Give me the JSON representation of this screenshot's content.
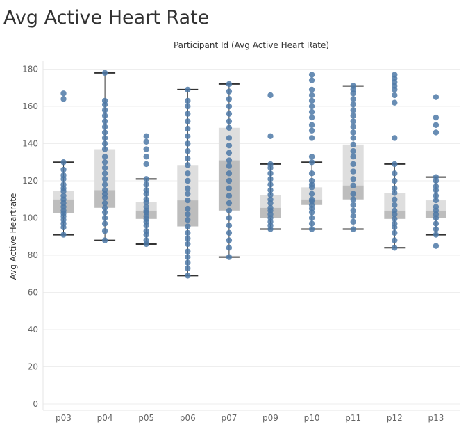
{
  "page": {
    "title": "Avg Active Heart Rate"
  },
  "chart_data": {
    "type": "box",
    "header": "Participant Id (Avg Active Heart Rate)",
    "ylabel": "Avg Active Heartrate",
    "ylim": [
      0,
      185
    ],
    "yticks": [
      0,
      20,
      40,
      60,
      80,
      100,
      120,
      140,
      160,
      180
    ],
    "categories": [
      "p03",
      "p04",
      "p05",
      "p06",
      "p07",
      "p09",
      "p10",
      "p11",
      "p12",
      "p13"
    ],
    "series": [
      {
        "category": "p03",
        "min": 91,
        "q1": 102.5,
        "median": 110,
        "q3": 114.5,
        "max": 130,
        "points": [
          91,
          95,
          97,
          99,
          101,
          102.5,
          104,
          106,
          108,
          110,
          112,
          114.5,
          116,
          118,
          121,
          123,
          126,
          130,
          164,
          167
        ]
      },
      {
        "category": "p04",
        "min": 88,
        "q1": 105.5,
        "median": 115,
        "q3": 137,
        "max": 178,
        "points": [
          88,
          93,
          97,
          100,
          103,
          105.5,
          108,
          111,
          113,
          115,
          118,
          121,
          124,
          127,
          130,
          133,
          137,
          140,
          143,
          146,
          149,
          152,
          155,
          158,
          161,
          163,
          178
        ]
      },
      {
        "category": "p05",
        "min": 86,
        "q1": 99.5,
        "median": 104,
        "q3": 108.5,
        "max": 121,
        "points": [
          86,
          88,
          91,
          93,
          96,
          98,
          99.5,
          101,
          103,
          104,
          106,
          108.5,
          110,
          113,
          115,
          118,
          121,
          129,
          133,
          137,
          141,
          144
        ]
      },
      {
        "category": "p06",
        "min": 69,
        "q1": 95.5,
        "median": 109.5,
        "q3": 128.5,
        "max": 169,
        "points": [
          69,
          73,
          76,
          79,
          82,
          86,
          89,
          92,
          95.5,
          99,
          102,
          105,
          109.5,
          113,
          116,
          120,
          124,
          128.5,
          132,
          136,
          140,
          144,
          148,
          152,
          156,
          160,
          163,
          169
        ]
      },
      {
        "category": "p07",
        "min": 79,
        "q1": 104,
        "median": 131,
        "q3": 148.5,
        "max": 172,
        "points": [
          79,
          84,
          88,
          92,
          96,
          100,
          104,
          108,
          112,
          116,
          120,
          124,
          128,
          131,
          135,
          139,
          143,
          148.5,
          152,
          156,
          160,
          164,
          168,
          172
        ]
      },
      {
        "category": "p09",
        "min": 94,
        "q1": 100,
        "median": 105.5,
        "q3": 112.5,
        "max": 129,
        "points": [
          94,
          96,
          98,
          100,
          102,
          104,
          105.5,
          108,
          110,
          112.5,
          115,
          118,
          121,
          124,
          127,
          129,
          144,
          166
        ]
      },
      {
        "category": "p10",
        "min": 94,
        "q1": 107,
        "median": 110,
        "q3": 116.5,
        "max": 130,
        "points": [
          94,
          97,
          100,
          103,
          105,
          107,
          109,
          110,
          113,
          116.5,
          118,
          120,
          124,
          130,
          133,
          143,
          147,
          150,
          154,
          157,
          160,
          163,
          166,
          169,
          174,
          177
        ]
      },
      {
        "category": "p11",
        "min": 94,
        "q1": 110,
        "median": 117.5,
        "q3": 139.5,
        "max": 171,
        "points": [
          94,
          98,
          101,
          104,
          107,
          110,
          113,
          117.5,
          121,
          125,
          129,
          133,
          136,
          139.5,
          143,
          146,
          149,
          152,
          155,
          158,
          161,
          164,
          167,
          169,
          171
        ]
      },
      {
        "category": "p12",
        "min": 84,
        "q1": 99.5,
        "median": 104,
        "q3": 113.5,
        "max": 129,
        "points": [
          84,
          88,
          92,
          95,
          97,
          99.5,
          102,
          104,
          107,
          110,
          113.5,
          116,
          120,
          124,
          129,
          143,
          162,
          166,
          169,
          171,
          173,
          175,
          177
        ]
      },
      {
        "category": "p13",
        "min": 91,
        "q1": 100,
        "median": 104,
        "q3": 109.5,
        "max": 122,
        "points": [
          85,
          91,
          94,
          97,
          100,
          102,
          104,
          106,
          109.5,
          112,
          115,
          117,
          120,
          122,
          146,
          150,
          154,
          165
        ]
      }
    ],
    "grid": true,
    "legend": "none",
    "colors": {
      "points": "#4e79a7",
      "box_upper": "#dedede",
      "box_lower": "#bdbdbd",
      "whisker": "#333333",
      "gridline": "#eeeeee",
      "axis_text": "#666666"
    }
  }
}
